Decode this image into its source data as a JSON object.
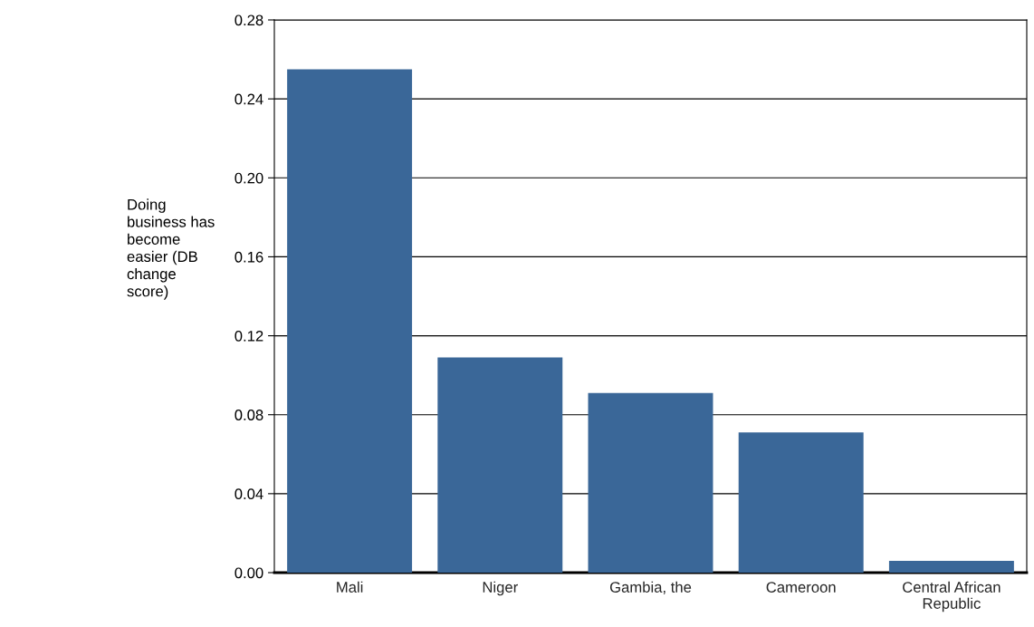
{
  "chart_data": {
    "type": "bar",
    "ylabel": "Doing business has become easier (DB change score)",
    "categories": [
      "Mali",
      "Niger",
      "Gambia, the",
      "Cameroon",
      "Central African Republic"
    ],
    "values": [
      0.255,
      0.109,
      0.091,
      0.071,
      0.006
    ],
    "color": "#3a6798",
    "ylim": [
      0,
      0.28
    ],
    "yticks": [
      {
        "value": 0,
        "label": "0.00"
      },
      {
        "value": 0.04,
        "label": "0.04"
      },
      {
        "value": 0.08,
        "label": "0.08"
      },
      {
        "value": 0.12,
        "label": "0.12"
      },
      {
        "value": 0.16,
        "label": "0.16"
      },
      {
        "value": 0.2,
        "label": "0.20"
      },
      {
        "value": 0.24,
        "label": "0.24"
      },
      {
        "value": 0.28,
        "label": "0.28"
      }
    ],
    "grid": "y"
  }
}
